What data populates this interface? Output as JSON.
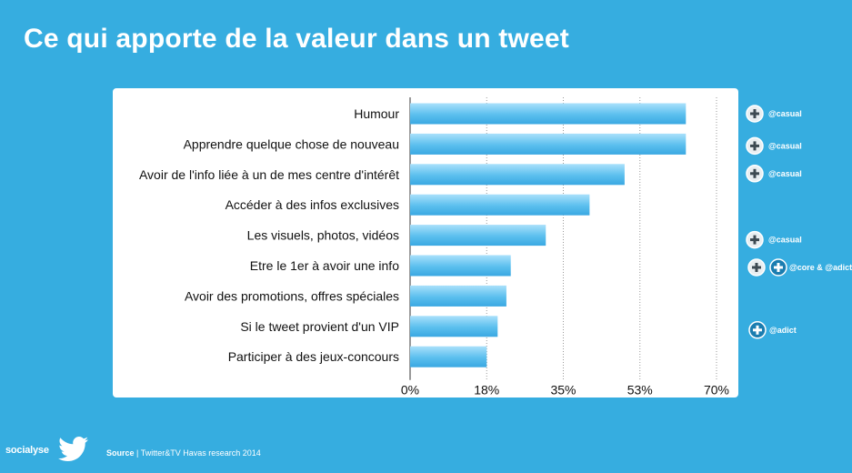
{
  "title": "Ce qui apporte de la valeur dans un tweet",
  "chart_data": {
    "type": "bar",
    "orientation": "horizontal",
    "categories": [
      "Humour",
      "Apprendre quelque chose de nouveau",
      "Avoir de l'info liée à un de mes centre d'intérêt",
      "Accéder à des infos exclusives",
      "Les visuels, photos, vidéos",
      "Etre le 1er à avoir une info",
      "Avoir des promotions, offres spéciales",
      "Si le tweet provient d'un VIP",
      "Participer à des jeux-concours"
    ],
    "values": [
      63,
      63,
      49,
      41,
      31,
      23,
      22,
      20,
      17.5
    ],
    "xlim": [
      0,
      70
    ],
    "x_ticks": [
      "0%",
      "18%",
      "35%",
      "53%",
      "70%"
    ],
    "x_tick_values": [
      0,
      17.5,
      35,
      52.5,
      70
    ],
    "grid": "vertical dotted",
    "bar_color": "#5bbfee"
  },
  "tags": [
    {
      "row": 0,
      "label": "@casual",
      "style": "light"
    },
    {
      "row": 1,
      "label": "@casual",
      "style": "light"
    },
    {
      "row": 2,
      "label": "@casual",
      "style": "light"
    },
    {
      "row": 4,
      "label": "@casual",
      "style": "light"
    },
    {
      "row": 5,
      "label": "@core & @adict",
      "style": "double"
    },
    {
      "row": 7,
      "label": "@adict",
      "style": "dark"
    }
  ],
  "footer": {
    "logo_text": "socialyse",
    "source_bold": "Source",
    "source_text": " | Twitter&TV Havas research 2014"
  },
  "colors": {
    "background": "#36ade0",
    "card": "#ffffff",
    "tag_light": "#e9eef1",
    "tag_dark": "#1a7db0"
  }
}
